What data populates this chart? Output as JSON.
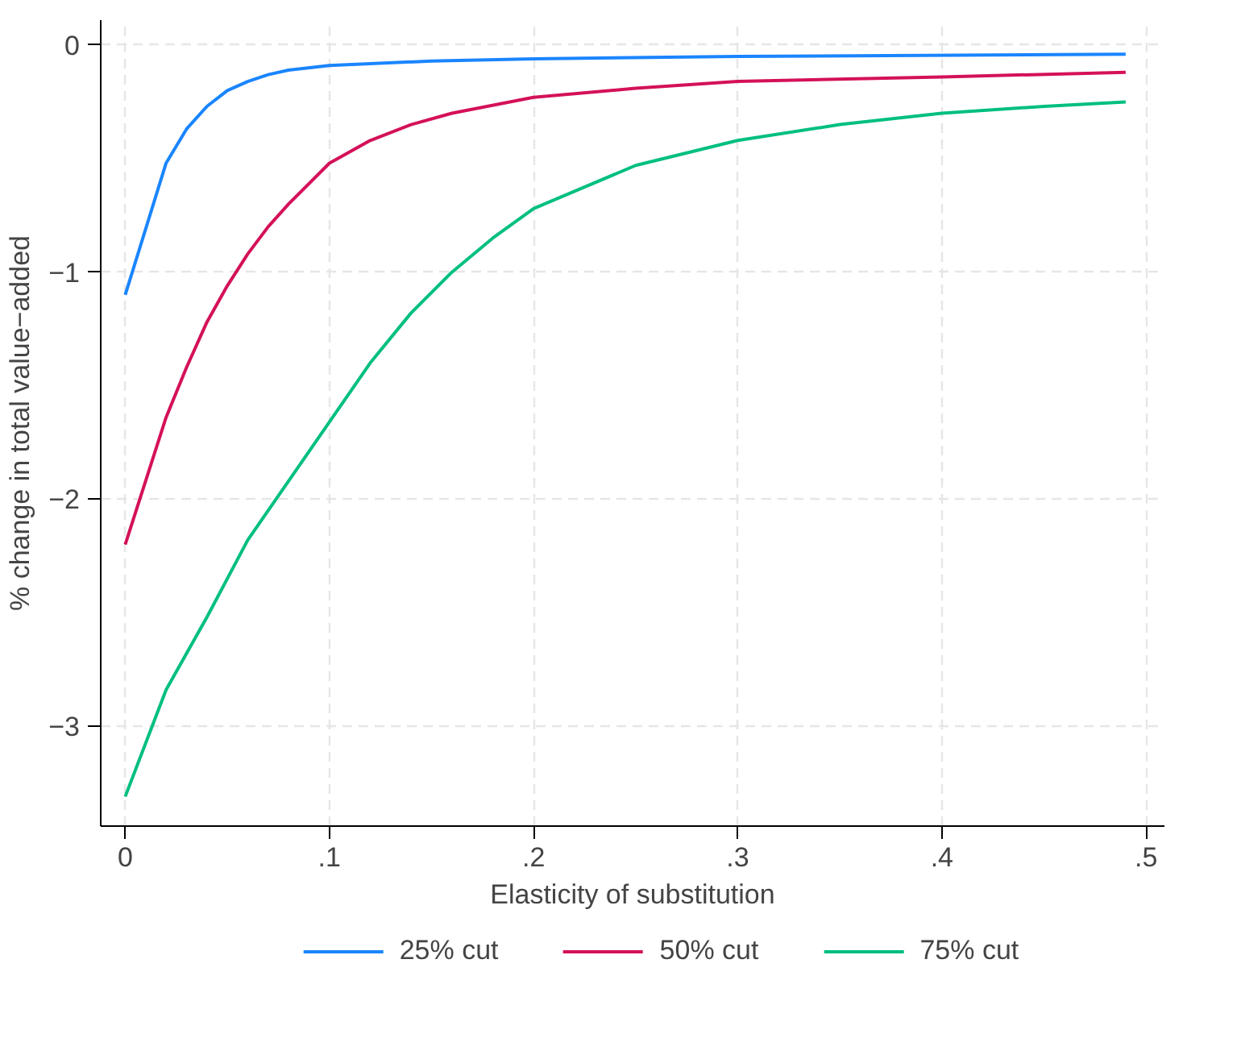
{
  "chart_data": {
    "type": "line",
    "xlabel": "Elasticity of substitution",
    "ylabel": "% change in total value−added",
    "xlim": [
      -0.012,
      0.509
    ],
    "ylim": [
      -3.44,
      0.11
    ],
    "xticks": [
      {
        "value": 0,
        "label": "0"
      },
      {
        "value": 0.1,
        "label": ".1"
      },
      {
        "value": 0.2,
        "label": ".2"
      },
      {
        "value": 0.3,
        "label": ".3"
      },
      {
        "value": 0.4,
        "label": ".4"
      },
      {
        "value": 0.5,
        "label": ".5"
      }
    ],
    "yticks": [
      {
        "value": 0,
        "label": "0"
      },
      {
        "value": -1,
        "label": "−1"
      },
      {
        "value": -2,
        "label": "−2"
      },
      {
        "value": -3,
        "label": "−3"
      }
    ],
    "grid": true,
    "legend": "bottom",
    "marker": "none",
    "line_style": "solid",
    "series": [
      {
        "name": "25% cut",
        "color": "#1a85ff",
        "x": [
          0,
          0.02,
          0.03,
          0.04,
          0.05,
          0.06,
          0.07,
          0.08,
          0.1,
          0.15,
          0.2,
          0.3,
          0.49
        ],
        "values": [
          -1.1,
          -0.52,
          -0.37,
          -0.27,
          -0.2,
          -0.16,
          -0.13,
          -0.11,
          -0.09,
          -0.07,
          -0.06,
          -0.05,
          -0.04
        ]
      },
      {
        "name": "50% cut",
        "color": "#d41159",
        "x": [
          0,
          0.02,
          0.03,
          0.04,
          0.05,
          0.06,
          0.07,
          0.08,
          0.09,
          0.1,
          0.12,
          0.14,
          0.16,
          0.2,
          0.25,
          0.3,
          0.4,
          0.49
        ],
        "values": [
          -2.2,
          -1.64,
          -1.42,
          -1.22,
          -1.06,
          -0.92,
          -0.8,
          -0.7,
          -0.61,
          -0.52,
          -0.42,
          -0.35,
          -0.3,
          -0.23,
          -0.19,
          -0.16,
          -0.14,
          -0.12
        ]
      },
      {
        "name": "75% cut",
        "color": "#00bf7f",
        "x": [
          0,
          0.02,
          0.04,
          0.06,
          0.08,
          0.1,
          0.12,
          0.14,
          0.16,
          0.18,
          0.2,
          0.25,
          0.3,
          0.35,
          0.4,
          0.45,
          0.49
        ],
        "values": [
          -3.31,
          -2.84,
          -2.52,
          -2.18,
          -1.92,
          -1.66,
          -1.4,
          -1.18,
          -1.0,
          -0.85,
          -0.72,
          -0.53,
          -0.42,
          -0.35,
          -0.3,
          -0.27,
          -0.25
        ]
      }
    ]
  }
}
